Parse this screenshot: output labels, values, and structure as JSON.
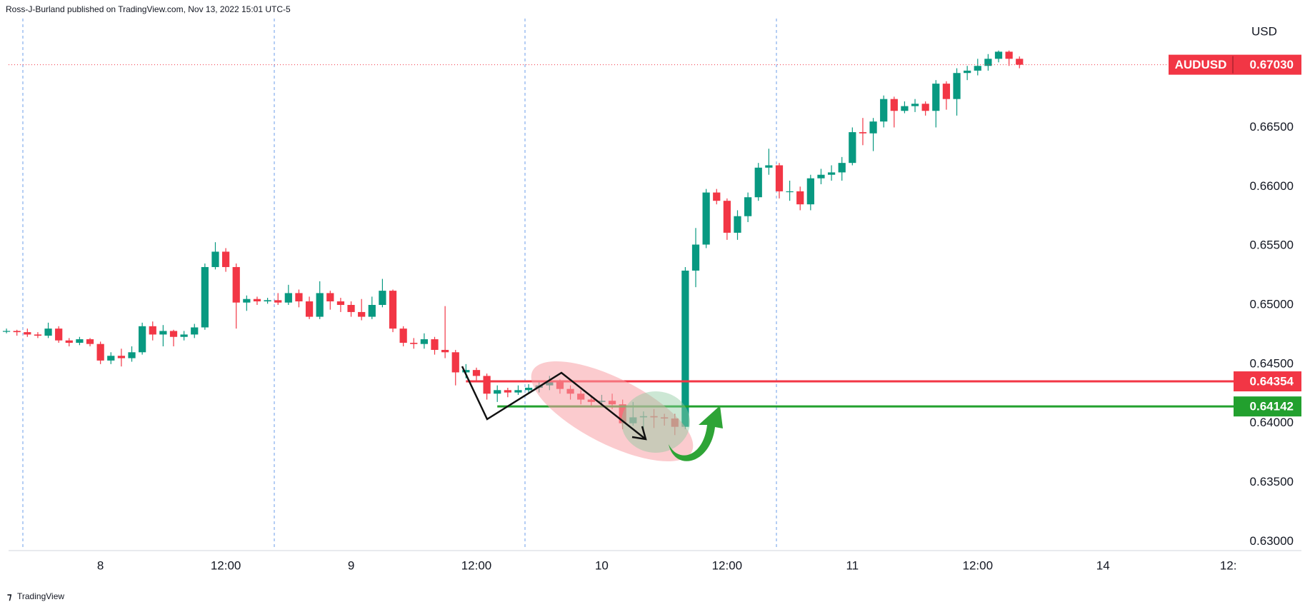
{
  "chart_data": {
    "type": "candlestick",
    "title": "Ross-J-Burland published on TradingView.com, Nov 13, 2022 15:01 UTC-5",
    "y_axis_label": "USD",
    "symbol": "AUDUSD",
    "footer": "TradingView",
    "up_color": "#089981",
    "down_color": "#f23645",
    "grid": false,
    "x": [
      -9,
      -8,
      -7,
      -6,
      -5,
      -4,
      -3,
      -2,
      -1,
      0,
      1,
      2,
      3,
      4,
      5,
      6,
      7,
      8,
      9,
      10,
      11,
      12,
      13,
      14,
      15,
      16,
      17,
      18,
      19,
      20,
      21,
      22,
      23,
      24,
      25,
      26,
      27,
      28,
      29,
      30,
      31,
      32,
      33,
      34,
      35,
      36,
      37,
      38,
      39,
      40,
      41,
      42,
      43,
      44,
      45,
      46,
      47,
      48,
      49,
      50,
      51,
      52,
      53,
      54,
      55,
      56,
      57,
      58,
      59,
      60,
      61,
      62,
      63,
      64,
      65,
      66,
      67,
      68,
      69,
      70,
      71,
      72,
      73,
      74,
      75,
      76,
      77,
      78,
      79,
      80,
      81,
      82,
      83,
      84,
      85,
      86,
      87,
      88
    ],
    "open": [
      0.6478,
      0.6478,
      0.6477,
      0.6475,
      0.6474,
      0.648,
      0.647,
      0.6468,
      0.6471,
      0.6467,
      0.6453,
      0.6457,
      0.6455,
      0.646,
      0.6482,
      0.6475,
      0.6478,
      0.6473,
      0.6475,
      0.6481,
      0.6532,
      0.6545,
      0.6532,
      0.6502,
      0.6505,
      0.6503,
      0.6504,
      0.6502,
      0.651,
      0.6503,
      0.649,
      0.651,
      0.6503,
      0.65,
      0.6494,
      0.649,
      0.65,
      0.6512,
      0.648,
      0.6468,
      0.6467,
      0.6471,
      0.6462,
      0.646,
      0.6443,
      0.6445,
      0.644,
      0.6425,
      0.6428,
      0.6426,
      0.6428,
      0.643,
      0.6432,
      0.6435,
      0.6429,
      0.6425,
      0.642,
      0.6418,
      0.6419,
      0.6416,
      0.64,
      0.6405,
      0.6406,
      0.6405,
      0.6404,
      0.6397,
      0.6529,
      0.6551,
      0.6595,
      0.6588,
      0.6561,
      0.6575,
      0.6591,
      0.6616,
      0.6618,
      0.6596,
      0.6596,
      0.6585,
      0.6607,
      0.661,
      0.6612,
      0.662,
      0.6646,
      0.6645,
      0.6655,
      0.6674,
      0.6664,
      0.6668,
      0.667,
      0.6664,
      0.6687,
      0.6674,
      0.6696,
      0.6698,
      0.6702,
      0.6708,
      0.6714,
      0.6708
    ],
    "high": [
      0.648,
      0.6479,
      0.648,
      0.6477,
      0.6485,
      0.6482,
      0.6472,
      0.6473,
      0.6472,
      0.6469,
      0.646,
      0.6463,
      0.6465,
      0.6485,
      0.6486,
      0.6483,
      0.6479,
      0.6478,
      0.6484,
      0.6535,
      0.6553,
      0.6548,
      0.6535,
      0.6508,
      0.6507,
      0.6506,
      0.651,
      0.6517,
      0.6513,
      0.6507,
      0.652,
      0.6512,
      0.6506,
      0.6503,
      0.6505,
      0.6507,
      0.6522,
      0.6513,
      0.6482,
      0.6472,
      0.6476,
      0.6473,
      0.6499,
      0.6462,
      0.645,
      0.6447,
      0.6442,
      0.6432,
      0.643,
      0.6432,
      0.6433,
      0.6436,
      0.644,
      0.6437,
      0.6432,
      0.6428,
      0.6423,
      0.6424,
      0.6425,
      0.642,
      0.6418,
      0.641,
      0.6412,
      0.6408,
      0.6408,
      0.6532,
      0.6565,
      0.6598,
      0.6598,
      0.659,
      0.658,
      0.6595,
      0.662,
      0.6632,
      0.662,
      0.6605,
      0.66,
      0.661,
      0.6615,
      0.6618,
      0.6625,
      0.665,
      0.6658,
      0.6658,
      0.6677,
      0.6676,
      0.6672,
      0.6674,
      0.6672,
      0.669,
      0.6689,
      0.67,
      0.6702,
      0.6708,
      0.6712,
      0.6715,
      0.6715,
      0.671
    ],
    "low": [
      0.6476,
      0.6474,
      0.6473,
      0.6472,
      0.6472,
      0.6468,
      0.6465,
      0.6466,
      0.6465,
      0.645,
      0.645,
      0.6448,
      0.6452,
      0.6458,
      0.647,
      0.6465,
      0.6465,
      0.647,
      0.6472,
      0.6479,
      0.653,
      0.6528,
      0.648,
      0.6495,
      0.65,
      0.6501,
      0.65,
      0.65,
      0.6498,
      0.6488,
      0.6488,
      0.6496,
      0.6494,
      0.649,
      0.6487,
      0.6488,
      0.6498,
      0.6477,
      0.6465,
      0.6463,
      0.6463,
      0.6458,
      0.6455,
      0.6432,
      0.6438,
      0.6436,
      0.642,
      0.6418,
      0.6422,
      0.6424,
      0.6425,
      0.6426,
      0.6428,
      0.6425,
      0.642,
      0.6416,
      0.6414,
      0.6415,
      0.6412,
      0.6395,
      0.6398,
      0.6395,
      0.6396,
      0.6398,
      0.639,
      0.6395,
      0.6515,
      0.6548,
      0.6585,
      0.6555,
      0.6555,
      0.657,
      0.6588,
      0.661,
      0.659,
      0.6588,
      0.658,
      0.658,
      0.6602,
      0.6605,
      0.6605,
      0.6618,
      0.6635,
      0.663,
      0.665,
      0.665,
      0.6662,
      0.6663,
      0.666,
      0.665,
      0.6665,
      0.666,
      0.669,
      0.6694,
      0.6698,
      0.6705,
      0.6702,
      0.67
    ],
    "close": [
      0.6478,
      0.6477,
      0.6475,
      0.6474,
      0.648,
      0.647,
      0.6468,
      0.6471,
      0.6467,
      0.6453,
      0.6457,
      0.6455,
      0.646,
      0.6482,
      0.6475,
      0.6478,
      0.6473,
      0.6475,
      0.6481,
      0.6532,
      0.6545,
      0.6532,
      0.6502,
      0.6505,
      0.6503,
      0.6504,
      0.6502,
      0.651,
      0.6503,
      0.649,
      0.651,
      0.6503,
      0.65,
      0.6494,
      0.649,
      0.65,
      0.6512,
      0.648,
      0.6468,
      0.6467,
      0.6471,
      0.6462,
      0.646,
      0.6443,
      0.6445,
      0.644,
      0.6425,
      0.6428,
      0.6426,
      0.6428,
      0.643,
      0.6432,
      0.6435,
      0.6429,
      0.6425,
      0.642,
      0.6418,
      0.6419,
      0.6416,
      0.64,
      0.6405,
      0.6406,
      0.6405,
      0.6404,
      0.6397,
      0.6529,
      0.6551,
      0.6595,
      0.6588,
      0.6561,
      0.6575,
      0.6591,
      0.6616,
      0.6618,
      0.6596,
      0.6596,
      0.6585,
      0.6607,
      0.661,
      0.6612,
      0.662,
      0.6646,
      0.6645,
      0.6655,
      0.6674,
      0.6664,
      0.6668,
      0.667,
      0.6664,
      0.6687,
      0.6674,
      0.6696,
      0.6698,
      0.6702,
      0.6708,
      0.6714,
      0.6708,
      0.6703
    ],
    "xlim": [
      -8.8,
      115
    ],
    "xticks": [
      {
        "value": 0,
        "label": "8"
      },
      {
        "value": 12,
        "label": "12:00"
      },
      {
        "value": 24,
        "label": "9"
      },
      {
        "value": 36,
        "label": "12:00"
      },
      {
        "value": 48,
        "label": "10"
      },
      {
        "value": 60,
        "label": "12:00"
      },
      {
        "value": 72,
        "label": "11"
      },
      {
        "value": 84,
        "label": "12:00"
      },
      {
        "value": 96,
        "label": "14"
      },
      {
        "value": 108,
        "label": "12:"
      }
    ],
    "ylim": [
      0.6293,
      0.6742
    ],
    "yticks": [
      {
        "value": 0.63,
        "label": "0.63000"
      },
      {
        "value": 0.635,
        "label": "0.63500"
      },
      {
        "value": 0.64,
        "label": "0.64000"
      },
      {
        "value": 0.645,
        "label": "0.64500"
      },
      {
        "value": 0.65,
        "label": "0.65000"
      },
      {
        "value": 0.655,
        "label": "0.65500"
      },
      {
        "value": 0.66,
        "label": "0.66000"
      },
      {
        "value": 0.665,
        "label": "0.66500"
      }
    ],
    "last": {
      "value": 0.6703,
      "label": "0.67030",
      "color": "#f23645"
    },
    "levels": [
      {
        "value": 0.64354,
        "label": "0.64354",
        "color": "#f23645",
        "x_start": 35
      },
      {
        "value": 0.64142,
        "label": "0.64142",
        "color": "#22a02e",
        "x_start": 38
      }
    ]
  }
}
